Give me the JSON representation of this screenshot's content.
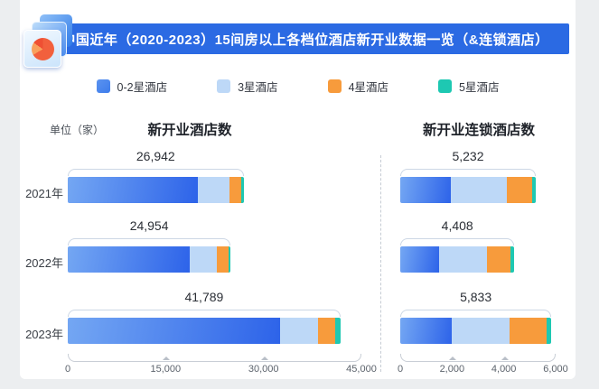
{
  "header": {
    "title": "中国近年（2020-2023）15间房以上各档位酒店新开业数据一览（&连锁酒店）"
  },
  "unit_label": "单位（家）",
  "legend": [
    {
      "label": "0-2星酒店",
      "color": "#3d7ceb"
    },
    {
      "label": "3星酒店",
      "color": "#bdd8f7"
    },
    {
      "label": "4星酒店",
      "color": "#f79b3c"
    },
    {
      "label": "5星酒店",
      "color": "#1ec8b2"
    }
  ],
  "colors": {
    "blue_light": "#74a7f3",
    "blue": "#2d63e9",
    "light_blue": "#bdd8f7",
    "orange": "#f79b3c",
    "teal": "#1ec8b2",
    "banner_bg": "#2b6ae3"
  },
  "chart_data": [
    {
      "type": "bar",
      "orientation": "horizontal-stacked",
      "title": "新开业酒店数",
      "categories": [
        "2021年",
        "2022年",
        "2023年"
      ],
      "totals": [
        26942,
        24954,
        41789
      ],
      "series": [
        {
          "name": "0-2星酒店",
          "values": [
            19900,
            18700,
            32500
          ]
        },
        {
          "name": "3星酒店",
          "values": [
            4900,
            4150,
            5900
          ]
        },
        {
          "name": "4星酒店",
          "values": [
            1850,
            1800,
            2600
          ]
        },
        {
          "name": "5星酒店",
          "values": [
            292,
            304,
            789
          ]
        }
      ],
      "series_note": "segment values estimated from bar proportions; totals are labeled",
      "xlim": [
        0,
        45000
      ],
      "xticks": [
        0,
        15000,
        30000,
        45000
      ],
      "grid": false,
      "legend_position": "top"
    },
    {
      "type": "bar",
      "orientation": "horizontal-stacked",
      "title": "新开业连锁酒店数",
      "categories": [
        "2021年",
        "2022年",
        "2023年"
      ],
      "totals": [
        5232,
        4408,
        5833
      ],
      "series": [
        {
          "name": "0-2星酒店",
          "values": [
            1950,
            1500,
            1988
          ]
        },
        {
          "name": "3星酒店",
          "values": [
            2180,
            1850,
            2250
          ]
        },
        {
          "name": "4星酒店",
          "values": [
            960,
            900,
            1400
          ]
        },
        {
          "name": "5星酒店",
          "values": [
            142,
            158,
            195
          ]
        }
      ],
      "series_note": "segment values estimated from bar proportions; totals are labeled",
      "xlim": [
        0,
        6000
      ],
      "xticks": [
        0,
        2000,
        4000,
        6000
      ],
      "grid": false,
      "legend_position": "top"
    }
  ]
}
